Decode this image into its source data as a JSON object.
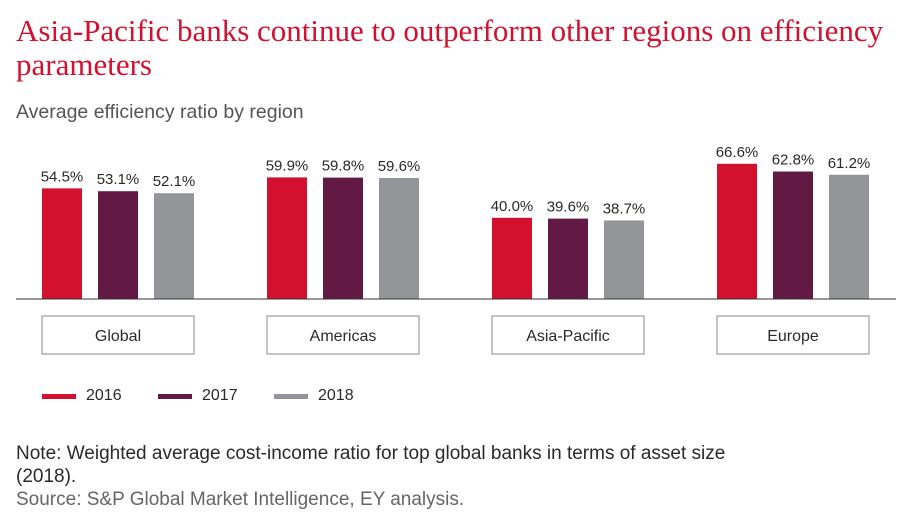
{
  "title": "Asia-Pacific banks continue to outperform other regions on efficiency parameters",
  "subtitle": "Average efficiency ratio by region",
  "note": "Note: Weighted average cost-income ratio for top global banks in terms of asset size (2018).",
  "source": "Source: S&P Global Market Intelligence, EY analysis.",
  "colors": {
    "title": "#d3102e",
    "s2016": "#d3102e",
    "s2017": "#621a45",
    "s2018": "#939598"
  },
  "chart_data": {
    "type": "bar",
    "title": "",
    "xlabel": "",
    "ylabel": "",
    "categories": [
      "Global",
      "Americas",
      "Asia-Pacific",
      "Europe"
    ],
    "series": [
      {
        "name": "2016",
        "color": "#d3102e",
        "values": [
          54.5,
          59.9,
          40.0,
          66.6
        ],
        "labels": [
          "54.5%",
          "59.9%",
          "40.0%",
          "66.6%"
        ]
      },
      {
        "name": "2017",
        "color": "#621a45",
        "values": [
          53.1,
          59.8,
          39.6,
          62.8
        ],
        "labels": [
          "53.1%",
          "59.8%",
          "39.6%",
          "62.8%"
        ]
      },
      {
        "name": "2018",
        "color": "#939598",
        "values": [
          52.1,
          59.6,
          38.7,
          61.2
        ],
        "labels": [
          "52.1%",
          "59.6%",
          "38.7%",
          "61.2%"
        ]
      }
    ],
    "grid": false,
    "legend": "bottom-left"
  }
}
